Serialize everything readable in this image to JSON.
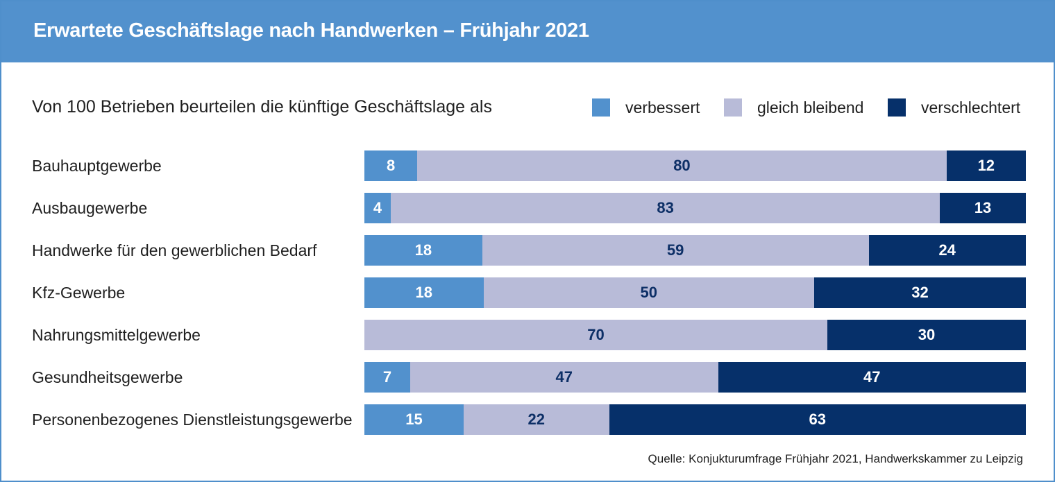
{
  "header": {
    "title": "Erwartete Geschäftslage nach Handwerken – Frühjahr 2021"
  },
  "subtitle": "Von 100 Betrieben beurteilen die künftige Geschäftslage als",
  "source": "Quelle: Konjukturumfrage Frühjahr 2021, Handwerkskammer zu Leipzig",
  "colors": {
    "improve": "#5291cd",
    "same": "#b8bbd8",
    "worse": "#06306a",
    "header": "#5291cd"
  },
  "chart_data": {
    "type": "bar",
    "orientation": "horizontal",
    "stacked": true,
    "title": "Erwartete Geschäftslage nach Handwerken – Frühjahr 2021",
    "subtitle": "Von 100 Betrieben beurteilen die künftige Geschäftslage als",
    "legend_position": "top-right",
    "categories": [
      "Bauhauptgewerbe",
      "Ausbaugewerbe",
      "Handwerke für den gewerblichen Bedarf",
      "Kfz-Gewerbe",
      "Nahrungsmittelgewerbe",
      "Gesundheitsgewerbe",
      "Personenbezogenes Dienstleistungsgewerbe"
    ],
    "series": [
      {
        "name": "verbessert",
        "key": "improve",
        "values": [
          8,
          4,
          18,
          18,
          0,
          7,
          15
        ]
      },
      {
        "name": "gleich bleibend",
        "key": "same",
        "values": [
          80,
          83,
          59,
          50,
          70,
          47,
          22
        ]
      },
      {
        "name": "verschlechtert",
        "key": "worse",
        "values": [
          12,
          13,
          24,
          32,
          30,
          47,
          63
        ]
      }
    ]
  }
}
